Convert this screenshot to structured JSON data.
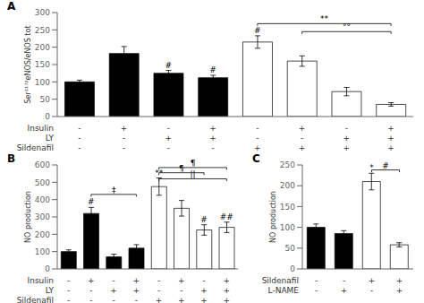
{
  "chart_data": [
    {
      "type": "bar",
      "title": "A",
      "y_label": "Ser¹¹⁷²eNOS/eNOS tot",
      "ylim": [
        0,
        300
      ],
      "yticks": [
        0,
        50,
        100,
        150,
        200,
        250,
        300
      ],
      "values": [
        100,
        182,
        125,
        112,
        215,
        160,
        72,
        35
      ],
      "errors": [
        5,
        20,
        8,
        7,
        18,
        15,
        12,
        5
      ],
      "colors": [
        "black",
        "black",
        "black",
        "black",
        "white",
        "white",
        "white",
        "white"
      ],
      "x_label_rows": [
        {
          "label": "Insulin",
          "values": [
            "-",
            "+",
            "-",
            "+",
            "-",
            "+",
            "-",
            "+"
          ]
        },
        {
          "label": "LY",
          "values": [
            "-",
            "-",
            "+",
            "+",
            "-",
            "-",
            "+",
            "+"
          ]
        },
        {
          "label": "Sildenafil",
          "values": [
            "-",
            "-",
            "-",
            "-",
            "+",
            "+",
            "+",
            "+"
          ]
        }
      ],
      "annotations": [
        {
          "text": "#",
          "bar": 2
        },
        {
          "text": "#",
          "bar": 3
        },
        {
          "text": "#",
          "bar": 4
        }
      ],
      "brackets": [
        {
          "from": 4,
          "to": 7,
          "y": 268,
          "label": "**"
        },
        {
          "from": 5,
          "to": 7,
          "y": 245,
          "label": "°°"
        }
      ],
      "grid": false
    },
    {
      "type": "bar",
      "title": "B",
      "y_label": "NO production",
      "ylim": [
        0,
        600
      ],
      "yticks": [
        0,
        100,
        200,
        300,
        400,
        500,
        600
      ],
      "values": [
        100,
        320,
        70,
        120,
        475,
        350,
        225,
        240
      ],
      "errors": [
        10,
        35,
        15,
        20,
        50,
        45,
        30,
        30
      ],
      "colors": [
        "black",
        "black",
        "black",
        "black",
        "white",
        "white",
        "white",
        "white"
      ],
      "x_label_rows": [
        {
          "label": "Insulin",
          "values": [
            "-",
            "+",
            "-",
            "+",
            "-",
            "+",
            "-",
            "+"
          ]
        },
        {
          "label": "LY",
          "values": [
            "-",
            "-",
            "+",
            "+",
            "-",
            "-",
            "+",
            "+"
          ]
        },
        {
          "label": "Sildenafil",
          "values": [
            "-",
            "-",
            "-",
            "-",
            "+",
            "+",
            "+",
            "+"
          ]
        }
      ],
      "annotations": [
        {
          "text": "#",
          "bar": 1
        },
        {
          "text": "**",
          "bar": 4
        },
        {
          "text": "#",
          "bar": 6
        },
        {
          "text": "##",
          "bar": 7
        }
      ],
      "brackets": [
        {
          "from": 1,
          "to": 3,
          "y": 430,
          "label": "‡"
        },
        {
          "from": 4,
          "to": 6,
          "y": 555,
          "label": "¶"
        },
        {
          "from": 4,
          "to": 7,
          "y": 585,
          "label": "¶"
        },
        {
          "from": 4,
          "to": 7,
          "y": 520,
          "label": "||"
        }
      ],
      "grid": false
    },
    {
      "type": "bar",
      "title": "C",
      "y_label": "NO production",
      "ylim": [
        0,
        250
      ],
      "yticks": [
        0,
        50,
        100,
        150,
        200,
        250
      ],
      "values": [
        100,
        85,
        210,
        58
      ],
      "errors": [
        8,
        7,
        20,
        5
      ],
      "colors": [
        "black",
        "black",
        "white",
        "white"
      ],
      "x_label_rows": [
        {
          "label": "Sildenafil",
          "values": [
            "-",
            "-",
            "+",
            "+"
          ]
        },
        {
          "label": "L-NAME",
          "values": [
            "-",
            "+",
            "-",
            "+"
          ]
        }
      ],
      "annotations": [
        {
          "text": "*",
          "bar": 2
        }
      ],
      "brackets": [
        {
          "from": 2,
          "to": 3,
          "y": 238,
          "label": "#"
        }
      ],
      "grid": false
    }
  ]
}
